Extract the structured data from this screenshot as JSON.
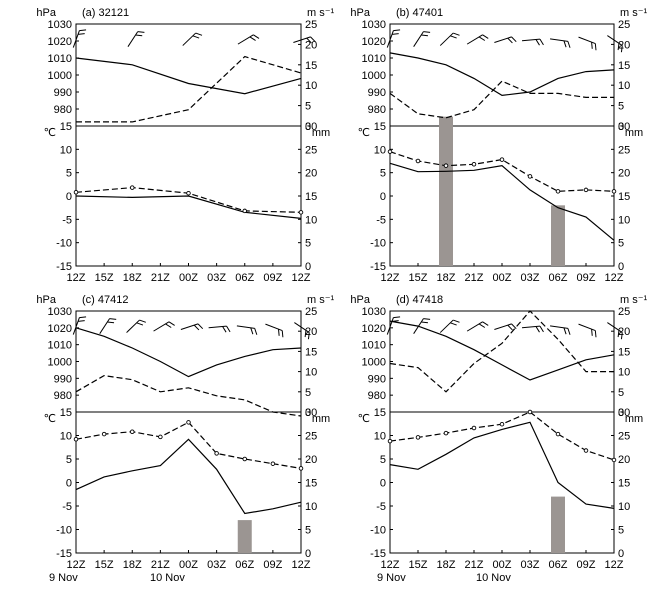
{
  "figure": {
    "x_ticks": [
      "12Z",
      "15Z",
      "18Z",
      "21Z",
      "00Z",
      "03Z",
      "06Z",
      "09Z",
      "12Z"
    ],
    "dates": [
      "9 Nov",
      "10 Nov"
    ],
    "pressure_unit": "hPa",
    "wind_unit": "m s⁻¹",
    "temp_unit": "℃",
    "precip_unit": "mm",
    "pressure_ticks": [
      980,
      990,
      1000,
      1010,
      1020,
      1030
    ],
    "wind_ticks": [
      0,
      5,
      10,
      15,
      20,
      25
    ],
    "temp_ticks": [
      -15,
      -10,
      -5,
      0,
      5,
      10,
      15
    ],
    "precip_ticks": [
      0,
      5,
      10,
      15,
      20,
      25,
      30
    ],
    "line_color": "#000000",
    "bar_color": "#9b9592"
  },
  "chart_data": [
    {
      "type": "line",
      "panel": "(a) 32121",
      "x": [
        "12Z",
        "15Z",
        "18Z",
        "21Z",
        "00Z",
        "03Z",
        "06Z",
        "09Z",
        "12Z"
      ],
      "upper": {
        "pressure_hPa": {
          "x_index": [
            0,
            2,
            4,
            6,
            8
          ],
          "values": [
            1010,
            1006,
            995,
            989,
            998
          ]
        },
        "wind_speed_ms": {
          "x_index": [
            0,
            2,
            4,
            6,
            8
          ],
          "values": [
            1,
            1,
            4,
            17,
            13
          ]
        },
        "ylim_pressure": [
          970,
          1030
        ],
        "ylim_wind": [
          0,
          25
        ]
      },
      "lower": {
        "temperature_C": {
          "x_index": [
            0,
            2,
            4,
            6,
            8
          ],
          "values": [
            0,
            -0.3,
            0,
            -3.5,
            -4.8
          ]
        },
        "dewpoint_C": {
          "x_index": [
            0,
            2,
            4,
            6,
            8
          ],
          "values": [
            0.8,
            1.8,
            0.6,
            -3.2,
            -3.5
          ]
        },
        "precipitation_mm": [],
        "ylim_temp": [
          -15,
          15
        ],
        "ylim_precip": [
          0,
          30
        ]
      }
    },
    {
      "type": "line",
      "panel": "(b) 47401",
      "x": [
        "12Z",
        "15Z",
        "18Z",
        "21Z",
        "00Z",
        "03Z",
        "06Z",
        "09Z",
        "12Z"
      ],
      "upper": {
        "pressure_hPa": {
          "x_index": [
            0,
            1,
            2,
            3,
            4,
            5,
            6,
            7,
            8
          ],
          "values": [
            1013,
            1010,
            1006,
            998,
            988,
            990,
            998,
            1002,
            1003
          ]
        },
        "wind_speed_ms": {
          "x_index": [
            0,
            1,
            2,
            3,
            4,
            5,
            6,
            7,
            8
          ],
          "values": [
            8,
            3,
            2,
            4,
            11,
            8,
            8,
            7,
            7
          ]
        },
        "ylim_pressure": [
          970,
          1030
        ],
        "ylim_wind": [
          0,
          25
        ]
      },
      "lower": {
        "temperature_C": {
          "x_index": [
            0,
            1,
            2,
            3,
            4,
            5,
            6,
            7,
            8
          ],
          "values": [
            7,
            5.2,
            5.3,
            5.5,
            6.5,
            1.3,
            -2.5,
            -4.5,
            -9.5
          ]
        },
        "dewpoint_C": {
          "x_index": [
            0,
            1,
            2,
            3,
            4,
            5,
            6,
            7,
            8
          ],
          "values": [
            9.5,
            7.5,
            6.5,
            6.8,
            7.8,
            4.2,
            1,
            1.3,
            1
          ]
        },
        "precipitation_mm": [
          {
            "x_index": 2,
            "value": 32
          },
          {
            "x_index": 6,
            "value": 13
          }
        ],
        "ylim_temp": [
          -15,
          15
        ],
        "ylim_precip": [
          0,
          30
        ]
      }
    },
    {
      "type": "line",
      "panel": "(c) 47412",
      "x": [
        "12Z",
        "15Z",
        "18Z",
        "21Z",
        "00Z",
        "03Z",
        "06Z",
        "09Z",
        "12Z"
      ],
      "upper": {
        "pressure_hPa": {
          "x_index": [
            0,
            1,
            2,
            3,
            4,
            5,
            6,
            7,
            8
          ],
          "values": [
            1020,
            1015,
            1008,
            1000,
            991,
            998,
            1003,
            1007,
            1008
          ]
        },
        "wind_speed_ms": {
          "x_index": [
            0,
            1,
            2,
            3,
            4,
            5,
            6,
            7,
            8
          ],
          "values": [
            5,
            9,
            8,
            5,
            6,
            4,
            3,
            0,
            -1
          ]
        },
        "ylim_pressure": [
          970,
          1030
        ],
        "ylim_wind": [
          0,
          25
        ]
      },
      "lower": {
        "temperature_C": {
          "x_index": [
            0,
            1,
            2,
            3,
            4,
            5,
            6,
            7,
            8
          ],
          "values": [
            -1.5,
            1.2,
            2.5,
            3.6,
            9.2,
            2.8,
            -6.6,
            -5.6,
            -4.2
          ]
        },
        "dewpoint_C": {
          "x_index": [
            0,
            1,
            2,
            3,
            4,
            5,
            6,
            7,
            8
          ],
          "values": [
            9.2,
            10.3,
            10.8,
            9.7,
            12.8,
            6.2,
            5,
            4,
            3
          ]
        },
        "precipitation_mm": [
          {
            "x_index": 6,
            "value": 7
          }
        ],
        "ylim_temp": [
          -15,
          15
        ],
        "ylim_precip": [
          0,
          30
        ]
      }
    },
    {
      "type": "line",
      "panel": "(d) 47418",
      "x": [
        "12Z",
        "15Z",
        "18Z",
        "21Z",
        "00Z",
        "03Z",
        "06Z",
        "09Z",
        "12Z"
      ],
      "upper": {
        "pressure_hPa": {
          "x_index": [
            0,
            1,
            2,
            3,
            4,
            5,
            6,
            7,
            8
          ],
          "values": [
            1024,
            1021,
            1015,
            1007,
            998,
            989,
            995,
            1001,
            1004
          ]
        },
        "wind_speed_ms": {
          "x_index": [
            0,
            1,
            2,
            3,
            4,
            5,
            6,
            7,
            8
          ],
          "values": [
            12,
            11,
            5,
            12,
            17,
            25,
            18,
            10,
            10
          ]
        },
        "ylim_pressure": [
          970,
          1030
        ],
        "ylim_wind": [
          0,
          25
        ]
      },
      "lower": {
        "temperature_C": {
          "x_index": [
            0,
            1,
            2,
            3,
            4,
            5,
            6,
            7,
            8
          ],
          "values": [
            3.8,
            2.8,
            6,
            9.5,
            11.3,
            12.8,
            0,
            -4.6,
            -5.5
          ]
        },
        "dewpoint_C": {
          "x_index": [
            0,
            1,
            2,
            3,
            4,
            5,
            6,
            7,
            8
          ],
          "values": [
            8.8,
            9.6,
            10.5,
            11.6,
            12.4,
            15,
            10.3,
            6.8,
            4.8
          ]
        },
        "precipitation_mm": [
          {
            "x_index": 6,
            "value": 12
          }
        ],
        "ylim_temp": [
          -15,
          15
        ],
        "ylim_precip": [
          0,
          30
        ]
      }
    }
  ]
}
